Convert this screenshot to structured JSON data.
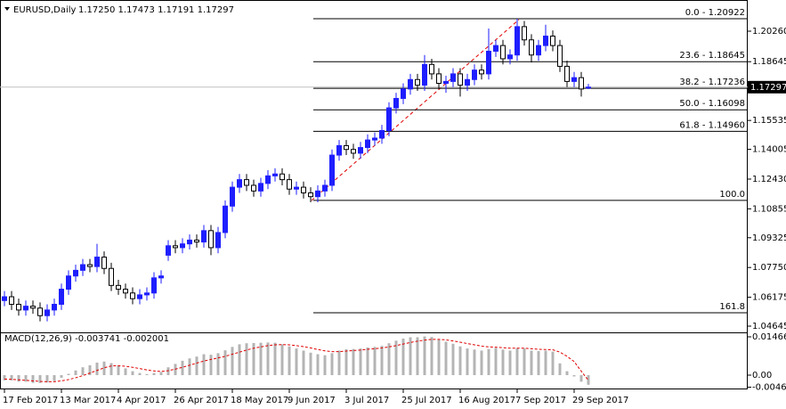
{
  "chart_data": {
    "type": "candlestick",
    "header": "EURUSD,Daily",
    "header_ohlc": "1.17250 1.17473 1.17191 1.17297",
    "up_color": "#1e1eff",
    "down_color": "#000000",
    "ylim": [
      1.04315,
      1.21675
    ],
    "yticks": [
      {
        "value": 1.2026,
        "label": "1.20260"
      },
      1.18645,
      1.15535,
      {
        "value": 1.14005,
        "label": "1.14005"
      },
      {
        "value": 1.1243,
        "label": "1.12430"
      },
      1.10855,
      1.09325,
      {
        "value": 1.0775,
        "label": "1.07750"
      },
      1.06175,
      1.04645
    ],
    "current_price": 1.17297,
    "date_labels": [
      "17 Feb 2017",
      "13 Mar 2017",
      "4 Apr 2017",
      "26 Apr 2017",
      "18 May 2017",
      "9 Jun 2017",
      "3 Jul 2017",
      "25 Jul 2017",
      "16 Aug 2017",
      "7 Sep 2017",
      "29 Sep 2017"
    ],
    "fib_levels": [
      {
        "label": "0.0 - 1.20922",
        "value": 1.20922
      },
      {
        "label": "23.6 - 1.18645",
        "value": 1.18645
      },
      {
        "label": "38.2 - 1.17236",
        "value": 1.17236
      },
      {
        "label": "50.0 - 1.16098",
        "value": 1.16098
      },
      {
        "label": "61.8 - 1.14960",
        "value": 1.1496
      },
      {
        "label": "100.0",
        "value": 1.113
      },
      {
        "label": "161.8",
        "value": 1.0535
      }
    ],
    "candles": [
      [
        1.06,
        1.065,
        1.057,
        1.062
      ],
      [
        1.062,
        1.065,
        1.055,
        1.058
      ],
      [
        1.058,
        1.061,
        1.052,
        1.055
      ],
      [
        1.055,
        1.06,
        1.052,
        1.057
      ],
      [
        1.057,
        1.06,
        1.053,
        1.056
      ],
      [
        1.056,
        1.059,
        1.049,
        1.052
      ],
      [
        1.052,
        1.058,
        1.049,
        1.055
      ],
      [
        1.055,
        1.061,
        1.052,
        1.058
      ],
      [
        1.058,
        1.069,
        1.055,
        1.066
      ],
      [
        1.066,
        1.076,
        1.063,
        1.073
      ],
      [
        1.073,
        1.079,
        1.07,
        1.076
      ],
      [
        1.076,
        1.082,
        1.073,
        1.079
      ],
      [
        1.079,
        1.082,
        1.075,
        1.078
      ],
      [
        1.078,
        1.09,
        1.075,
        1.083
      ],
      [
        1.083,
        1.086,
        1.074,
        1.077
      ],
      [
        1.077,
        1.08,
        1.065,
        1.068
      ],
      [
        1.068,
        1.071,
        1.063,
        1.066
      ],
      [
        1.066,
        1.069,
        1.061,
        1.064
      ],
      [
        1.064,
        1.067,
        1.058,
        1.061
      ],
      [
        1.061,
        1.066,
        1.058,
        1.063
      ],
      [
        1.063,
        1.067,
        1.06,
        1.064
      ],
      [
        1.064,
        1.075,
        1.061,
        1.072
      ],
      [
        1.072,
        1.076,
        1.069,
        1.073
      ],
      [
        1.084,
        1.092,
        1.081,
        1.089
      ],
      [
        1.089,
        1.092,
        1.085,
        1.088
      ],
      [
        1.088,
        1.093,
        1.085,
        1.09
      ],
      [
        1.09,
        1.095,
        1.087,
        1.092
      ],
      [
        1.092,
        1.095,
        1.088,
        1.091
      ],
      [
        1.091,
        1.1,
        1.088,
        1.097
      ],
      [
        1.097,
        1.1,
        1.084,
        1.088
      ],
      [
        1.088,
        1.099,
        1.085,
        1.096
      ],
      [
        1.096,
        1.113,
        1.093,
        1.11
      ],
      [
        1.11,
        1.123,
        1.107,
        1.12
      ],
      [
        1.12,
        1.127,
        1.117,
        1.124
      ],
      [
        1.124,
        1.127,
        1.118,
        1.121
      ],
      [
        1.121,
        1.124,
        1.115,
        1.118
      ],
      [
        1.118,
        1.125,
        1.115,
        1.122
      ],
      [
        1.122,
        1.129,
        1.119,
        1.126
      ],
      [
        1.126,
        1.13,
        1.123,
        1.127
      ],
      [
        1.127,
        1.13,
        1.121,
        1.124
      ],
      [
        1.124,
        1.127,
        1.116,
        1.119
      ],
      [
        1.119,
        1.123,
        1.116,
        1.12
      ],
      [
        1.12,
        1.123,
        1.114,
        1.117
      ],
      [
        1.117,
        1.12,
        1.112,
        1.115
      ],
      [
        1.115,
        1.121,
        1.112,
        1.118
      ],
      [
        1.118,
        1.124,
        1.115,
        1.121
      ],
      [
        1.121,
        1.14,
        1.118,
        1.137
      ],
      [
        1.137,
        1.145,
        1.134,
        1.142
      ],
      [
        1.142,
        1.145,
        1.137,
        1.14
      ],
      [
        1.14,
        1.143,
        1.135,
        1.138
      ],
      [
        1.138,
        1.144,
        1.135,
        1.141
      ],
      [
        1.141,
        1.148,
        1.138,
        1.145
      ],
      [
        1.145,
        1.149,
        1.142,
        1.146
      ],
      [
        1.146,
        1.153,
        1.143,
        1.15
      ],
      [
        1.15,
        1.165,
        1.147,
        1.162
      ],
      [
        1.162,
        1.17,
        1.159,
        1.167
      ],
      [
        1.167,
        1.175,
        1.164,
        1.172
      ],
      [
        1.172,
        1.18,
        1.169,
        1.177
      ],
      [
        1.177,
        1.18,
        1.171,
        1.174
      ],
      [
        1.174,
        1.19,
        1.171,
        1.185
      ],
      [
        1.185,
        1.188,
        1.177,
        1.18
      ],
      [
        1.18,
        1.183,
        1.172,
        1.175
      ],
      [
        1.175,
        1.179,
        1.17,
        1.176
      ],
      [
        1.176,
        1.183,
        1.173,
        1.18
      ],
      [
        1.18,
        1.183,
        1.168,
        1.174
      ],
      [
        1.174,
        1.18,
        1.171,
        1.177
      ],
      [
        1.177,
        1.185,
        1.174,
        1.182
      ],
      [
        1.182,
        1.185,
        1.177,
        1.18
      ],
      [
        1.18,
        1.204,
        1.177,
        1.192
      ],
      [
        1.192,
        1.198,
        1.189,
        1.195
      ],
      [
        1.195,
        1.198,
        1.185,
        1.188
      ],
      [
        1.188,
        1.193,
        1.185,
        1.19
      ],
      [
        1.19,
        1.2092,
        1.187,
        1.205
      ],
      [
        1.205,
        1.208,
        1.195,
        1.198
      ],
      [
        1.198,
        1.201,
        1.186,
        1.19
      ],
      [
        1.19,
        1.198,
        1.187,
        1.195
      ],
      [
        1.195,
        1.206,
        1.192,
        1.2
      ],
      [
        1.2,
        1.203,
        1.192,
        1.195
      ],
      [
        1.195,
        1.198,
        1.181,
        1.184
      ],
      [
        1.184,
        1.187,
        1.173,
        1.176
      ],
      [
        1.176,
        1.181,
        1.173,
        1.178
      ],
      [
        1.178,
        1.181,
        1.168,
        1.172
      ],
      [
        1.1725,
        1.17473,
        1.17191,
        1.17297
      ]
    ],
    "macd": {
      "title": "MACD(12,26,9) -0.003741 -0.002001",
      "ylim": [
        -0.005457,
        0.016368
      ],
      "yticks": [
        0.014663,
        {
          "value": 0,
          "label": "0.00"
        },
        -0.004618
      ],
      "hist_color": "#b4b4b4",
      "signal_color": "#e00000",
      "histogram": [
        -0.002,
        -0.002,
        -0.0025,
        -0.0025,
        -0.003,
        -0.003,
        -0.0028,
        -0.0022,
        -0.001,
        0.0005,
        0.0018,
        0.003,
        0.0038,
        0.0048,
        0.0052,
        0.0046,
        0.0036,
        0.0026,
        0.0015,
        0.0008,
        0.0004,
        0.0008,
        0.0012,
        0.003,
        0.0043,
        0.0055,
        0.0064,
        0.0071,
        0.008,
        0.0078,
        0.0084,
        0.0095,
        0.0108,
        0.0118,
        0.0122,
        0.0123,
        0.0124,
        0.0125,
        0.0124,
        0.0118,
        0.011,
        0.0102,
        0.0094,
        0.0086,
        0.008,
        0.0076,
        0.0084,
        0.0094,
        0.0099,
        0.01,
        0.0102,
        0.0106,
        0.0108,
        0.0112,
        0.0122,
        0.0132,
        0.014,
        0.0145,
        0.0145,
        0.0148,
        0.0146,
        0.0138,
        0.0128,
        0.012,
        0.011,
        0.0102,
        0.0098,
        0.0094,
        0.01,
        0.0104,
        0.0098,
        0.0094,
        0.0103,
        0.0102,
        0.0094,
        0.0092,
        0.0094,
        0.009,
        0.0045,
        0.0015,
        -0.0005,
        -0.0025,
        -0.0037
      ],
      "signal": [
        -0.0015,
        -0.0016,
        -0.0018,
        -0.002,
        -0.0022,
        -0.0024,
        -0.0025,
        -0.0025,
        -0.0022,
        -0.0017,
        -0.001,
        -0.0002,
        0.0008,
        0.0018,
        0.0028,
        0.0035,
        0.0036,
        0.0034,
        0.003,
        0.0025,
        0.002,
        0.0016,
        0.0014,
        0.0017,
        0.0023,
        0.003,
        0.0038,
        0.0046,
        0.0054,
        0.006,
        0.0066,
        0.0072,
        0.008,
        0.0088,
        0.0096,
        0.0103,
        0.0108,
        0.0113,
        0.0116,
        0.0117,
        0.0116,
        0.0113,
        0.0109,
        0.0104,
        0.0098,
        0.0093,
        0.009,
        0.009,
        0.0092,
        0.0094,
        0.0096,
        0.0099,
        0.0101,
        0.0104,
        0.0108,
        0.0113,
        0.0119,
        0.0125,
        0.013,
        0.0134,
        0.0137,
        0.0137,
        0.0135,
        0.0131,
        0.0126,
        0.0121,
        0.0116,
        0.0111,
        0.0108,
        0.0107,
        0.0105,
        0.0103,
        0.0103,
        0.0103,
        0.0101,
        0.0099,
        0.0098,
        0.0097,
        0.0088,
        0.0072,
        0.0052,
        0.0015,
        -0.002
      ]
    }
  }
}
